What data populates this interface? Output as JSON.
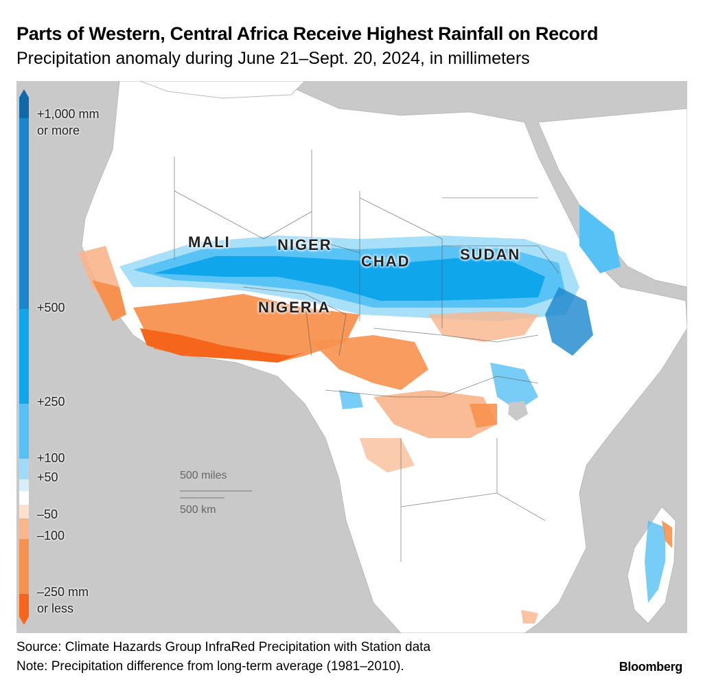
{
  "title": "Parts of Western, Central Africa Receive Highest Rainfall on Record",
  "subtitle": "Precipitation anomaly during June 21–Sept. 20, 2024, in millimeters",
  "legend": {
    "labels": [
      "+1,000 mm",
      "or more",
      "+500",
      "+250",
      "+100",
      "+50",
      "–50",
      "–100",
      "–250 mm",
      "or less"
    ],
    "colors": [
      "#0f68a8",
      "#1a86cc",
      "#10a6ec",
      "#55c1f4",
      "#9fdbf8",
      "#d8eefb",
      "#ffffff",
      "#fde0cc",
      "#f9b58b",
      "#f7914f",
      "#f5651c"
    ]
  },
  "countries": [
    "MALI",
    "NIGER",
    "CHAD",
    "SUDAN",
    "NIGERIA"
  ],
  "scale": {
    "miles": "500 miles",
    "km": "500 km"
  },
  "footer": {
    "source": "Source: Climate Hazards Group InfraRed Precipitation with Station data",
    "note": "Note: Precipitation difference from long-term average (1981–2010)."
  },
  "brand": "Bloomberg"
}
